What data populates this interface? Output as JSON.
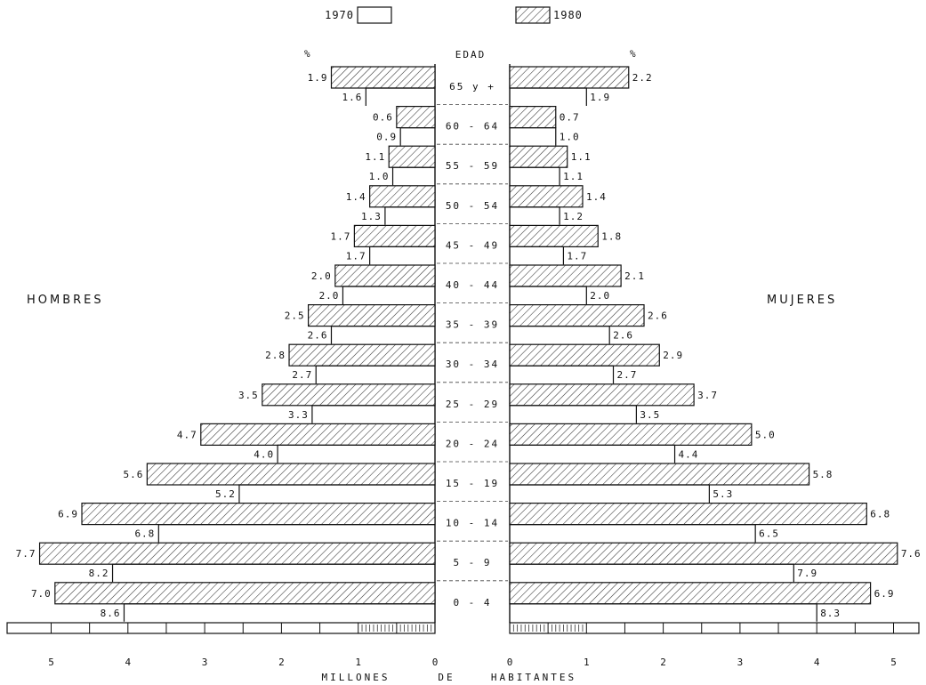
{
  "chart_data": {
    "type": "bar",
    "title": "",
    "legend": [
      {
        "key": "1970",
        "label": "1970",
        "pattern": "empty"
      },
      {
        "key": "1980",
        "label": "1980",
        "pattern": "hatched"
      }
    ],
    "legend_placement": "top-center",
    "age_header": "EDAD",
    "percent_symbol_left": "%",
    "percent_symbol_right": "%",
    "left_label": "HOMBRES",
    "right_label": "MUJERES",
    "xlabel": [
      "MILLONES",
      "DE",
      "HABITANTES"
    ],
    "x_unit": "millones de habitantes",
    "xlim": [
      0,
      5
    ],
    "x_ticks": [
      "5",
      "4",
      "3",
      "2",
      "1",
      "0"
    ],
    "x_ticks_right": [
      "0",
      "1",
      "2",
      "3",
      "4",
      "5"
    ],
    "categories": [
      "65 y +",
      "60 - 64",
      "55 - 59",
      "50 - 54",
      "45 - 49",
      "40 - 44",
      "35 - 39",
      "30 - 34",
      "25 - 29",
      "20 - 24",
      "15 - 19",
      "10 - 14",
      "5 - 9",
      "0 - 4"
    ],
    "series": [
      {
        "key": "1980",
        "side": "HOMBRES",
        "values": [
          1.35,
          0.5,
          0.6,
          0.85,
          1.05,
          1.3,
          1.65,
          1.9,
          2.25,
          3.05,
          3.75,
          4.6,
          5.15,
          4.95
        ],
        "labels": [
          "1.9",
          "0.6",
          "1.1",
          "1.4",
          "1.7",
          "2.0",
          "2.5",
          "2.8",
          "3.5",
          "4.7",
          "5.6",
          "6.9",
          "7.7",
          "7.0"
        ]
      },
      {
        "key": "1970",
        "side": "HOMBRES",
        "values": [
          0.9,
          0.45,
          0.55,
          0.65,
          0.85,
          1.2,
          1.35,
          1.55,
          1.6,
          2.05,
          2.55,
          3.6,
          4.2,
          4.05
        ],
        "labels": [
          "1.6",
          "0.9",
          "1.0",
          "1.3",
          "1.7",
          "2.0",
          "2.6",
          "2.7",
          "3.3",
          "4.0",
          "5.2",
          "6.8",
          "8.2",
          "8.6"
        ]
      },
      {
        "key": "1980",
        "side": "MUJERES",
        "values": [
          1.55,
          0.6,
          0.75,
          0.95,
          1.15,
          1.45,
          1.75,
          1.95,
          2.4,
          3.15,
          3.9,
          4.65,
          5.05,
          4.7
        ],
        "labels": [
          "2.2",
          "0.7",
          "1.1",
          "1.4",
          "1.8",
          "2.1",
          "2.6",
          "2.9",
          "3.7",
          "5.0",
          "5.8",
          "6.8",
          "7.6",
          "6.9"
        ]
      },
      {
        "key": "1970",
        "side": "MUJERES",
        "values": [
          1.0,
          0.6,
          0.65,
          0.65,
          0.7,
          1.0,
          1.3,
          1.35,
          1.65,
          2.15,
          2.6,
          3.2,
          3.7,
          4.0
        ],
        "labels": [
          "1.9",
          "1.0",
          "1.1",
          "1.2",
          "1.7",
          "2.0",
          "2.6",
          "2.7",
          "3.5",
          "4.4",
          "5.3",
          "6.5",
          "7.9",
          "8.3"
        ]
      }
    ]
  }
}
